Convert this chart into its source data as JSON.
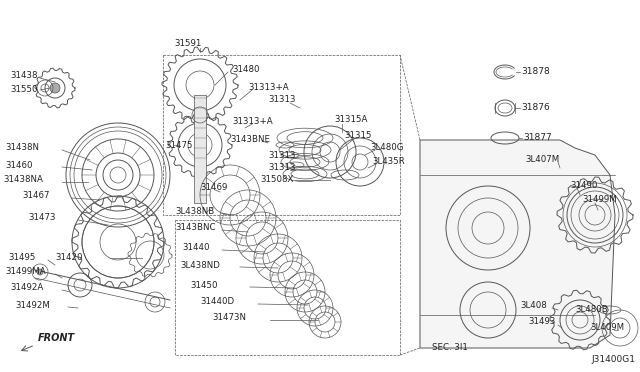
{
  "bg_color": "#ffffff",
  "fig_width": 6.4,
  "fig_height": 3.72,
  "dpi": 100,
  "line_color": "#555555",
  "diagram_id": "J31400G1",
  "sec_label": "SEC. 3I1",
  "front_label": "FRONT"
}
